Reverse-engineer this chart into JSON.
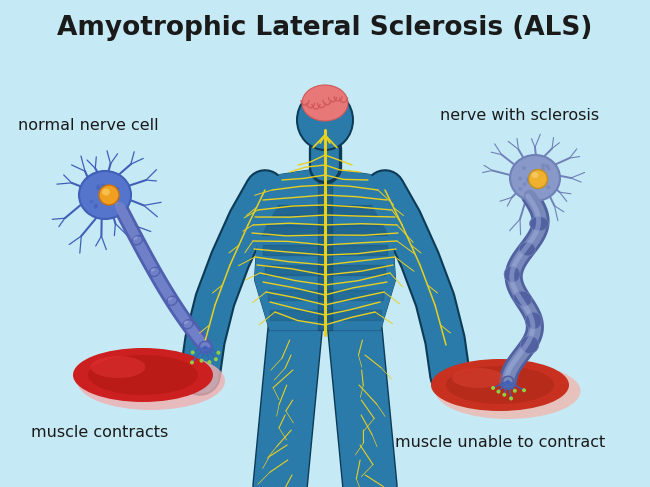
{
  "title": "Amyotrophic Lateral Sclerosis (ALS)",
  "title_fontsize": 19,
  "title_fontweight": "bold",
  "bg_color": "#c5eaf5",
  "label_normal_nerve": "normal nerve cell",
  "label_sclerosis_nerve": "nerve with sclerosis",
  "label_muscle_contracts": "muscle contracts",
  "label_muscle_unable": "muscle unable to contract",
  "label_fontsize": 11.5,
  "body_blue": "#2a7aaa",
  "body_dark": "#0d3a55",
  "body_mid": "#1e6a95",
  "nerve_yellow": "#e8d020",
  "nerve_yellow2": "#c8b000",
  "brain_pink": "#e87878",
  "brain_dark": "#d05858",
  "normal_cell_blue": "#4060b8",
  "normal_cell_mid": "#5575cc",
  "normal_cell_nucleus": "#f0a020",
  "axon_blue": "#5060b0",
  "axon_light": "#a0b0e0",
  "axon_mid": "#7080c8",
  "muscle_red": "#cc2020",
  "muscle_dark": "#aa1810",
  "muscle_light": "#f0a0a0",
  "sclerosis_cell": "#7080b8",
  "sclerosis_mid": "#8898c8",
  "sclerosis_nucleus": "#f0b030",
  "sclerosis_axon": "#7888b8",
  "sclerosis_lump": "#5060a0",
  "text_dark": "#1a1a1a"
}
